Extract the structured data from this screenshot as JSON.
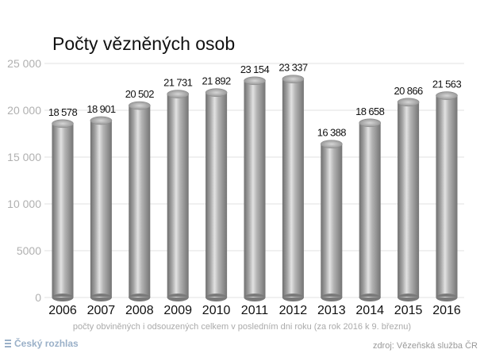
{
  "chart_data": {
    "type": "bar",
    "title": "Počty vězněných osob",
    "subtitle": "počty obviněných i odsouzených celkem v posledním dni roku (za rok 2016 k 9. březnu)",
    "categories": [
      "2006",
      "2007",
      "2008",
      "2009",
      "2010",
      "2011",
      "2012",
      "2013",
      "2014",
      "2015",
      "2016"
    ],
    "values": [
      18578,
      18901,
      20502,
      21731,
      21892,
      23154,
      23337,
      16388,
      18658,
      20866,
      21563
    ],
    "value_labels": [
      "18 578",
      "18 901",
      "20 502",
      "21 731",
      "21 892",
      "23 154",
      "23 337",
      "16 388",
      "18 658",
      "20 866",
      "21 563"
    ],
    "yticks": [
      0,
      5000,
      10000,
      15000,
      20000,
      25000
    ],
    "ytick_labels": [
      "0",
      "5000",
      "10 000",
      "15 000",
      "20 000",
      "25 000"
    ],
    "ylim": [
      0,
      25000
    ],
    "grid": true,
    "legend": "none",
    "bar_color": "#a9a9a9"
  },
  "footer": {
    "brand": "Český rozhlas",
    "source": "zdroj: Vězeňská služba ČR"
  }
}
